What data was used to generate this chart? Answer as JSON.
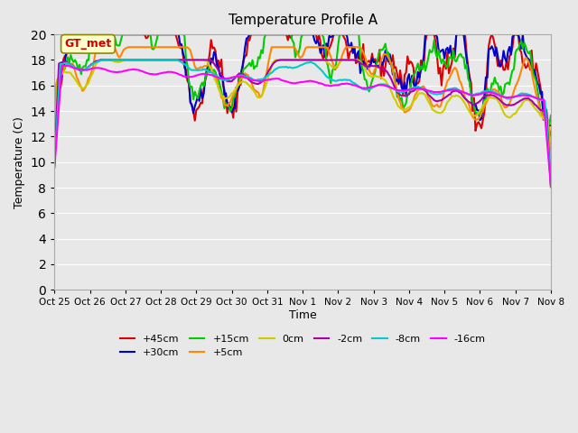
{
  "title": "Temperature Profile A",
  "xlabel": "Time",
  "ylabel": "Temperature (C)",
  "ylim": [
    0,
    20
  ],
  "xlim": [
    0,
    336
  ],
  "background_color": "#e8e8e8",
  "plot_bg_color": "#e8e8e8",
  "series": [
    {
      "label": "+45cm",
      "color": "#dd0000",
      "lw": 1.5
    },
    {
      "label": "+30cm",
      "color": "#0000cc",
      "lw": 1.5
    },
    {
      "label": "+15cm",
      "color": "#00cc00",
      "lw": 1.5
    },
    {
      "label": "+5cm",
      "color": "#ff8800",
      "lw": 1.5
    },
    {
      "label": "0cm",
      "color": "#cccc00",
      "lw": 1.5
    },
    {
      "label": "-2cm",
      "color": "#aa00aa",
      "lw": 1.5
    },
    {
      "label": "-8cm",
      "color": "#00cccc",
      "lw": 1.5
    },
    {
      "label": "-16cm",
      "color": "#ff00ff",
      "lw": 1.5
    }
  ],
  "xtick_positions": [
    0,
    24,
    48,
    72,
    96,
    120,
    144,
    168,
    192,
    216,
    240,
    264,
    288,
    312,
    336
  ],
  "xtick_labels": [
    "Oct 25",
    "Oct 26",
    "Oct 27",
    "Oct 28",
    "Oct 29",
    "Oct 30",
    "Oct 31",
    "Nov 1",
    "Nov 2",
    "Nov 3",
    "Nov 4",
    "Nov 5",
    "Nov 6",
    "Nov 7",
    "Nov 8"
  ],
  "grid_color": "#ffffff",
  "legend_box_color": "#ffffcc",
  "legend_box_edge": "#888800",
  "legend_text_color": "#cc0000",
  "legend_text": "GT_met",
  "ytick_positions": [
    0,
    2,
    4,
    6,
    8,
    10,
    12,
    14,
    16,
    18,
    20
  ]
}
